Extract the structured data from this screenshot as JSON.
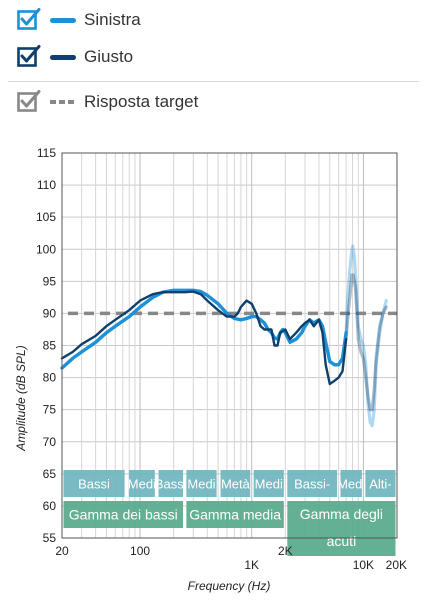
{
  "legend": {
    "items": [
      {
        "label": "Sinistra",
        "color": "#1e90d8",
        "checkbox_color": "#1e90d8",
        "style": "solid"
      },
      {
        "label": "Giusto",
        "color": "#0f3f6b",
        "checkbox_color": "#0f3f6b",
        "style": "solid"
      },
      {
        "label": "Risposta target",
        "color": "#888888",
        "checkbox_color": "#888888",
        "style": "dashed"
      }
    ]
  },
  "chart_data": {
    "type": "line",
    "xlabel": "Frequency (Hz)",
    "ylabel": "Amplitude (dB SPL)",
    "xscale": "log",
    "xlim": [
      20,
      20000
    ],
    "ylim": [
      55,
      115
    ],
    "yticks": [
      55,
      60,
      65,
      70,
      75,
      80,
      85,
      90,
      95,
      100,
      105,
      110,
      115
    ],
    "xtick_labels": [
      {
        "x": 20,
        "label": "20"
      },
      {
        "x": 100,
        "label": "100"
      },
      {
        "x": 1000,
        "label": "1K"
      },
      {
        "x": 2000,
        "label": "2K"
      },
      {
        "x": 10000,
        "label": "10K"
      },
      {
        "x": 20000,
        "label": "20K"
      }
    ],
    "grid": true,
    "target": {
      "name": "Risposta target",
      "value": 90,
      "color": "#888888"
    },
    "series": [
      {
        "name": "Sinistra",
        "color": "#1e90d8",
        "points": [
          [
            20,
            81.5
          ],
          [
            25,
            83
          ],
          [
            30,
            84
          ],
          [
            40,
            85.5
          ],
          [
            50,
            87
          ],
          [
            60,
            88
          ],
          [
            80,
            89.5
          ],
          [
            100,
            91
          ],
          [
            130,
            92.5
          ],
          [
            160,
            93.3
          ],
          [
            200,
            93.6
          ],
          [
            250,
            93.6
          ],
          [
            300,
            93.6
          ],
          [
            350,
            93.4
          ],
          [
            400,
            92.8
          ],
          [
            500,
            91.5
          ],
          [
            600,
            90
          ],
          [
            700,
            89.2
          ],
          [
            800,
            89
          ],
          [
            900,
            89.2
          ],
          [
            1000,
            89.5
          ],
          [
            1100,
            89.5
          ],
          [
            1200,
            89
          ],
          [
            1300,
            88.5
          ],
          [
            1400,
            87.5
          ],
          [
            1500,
            87
          ],
          [
            1600,
            86.2
          ],
          [
            1700,
            86
          ],
          [
            1800,
            87
          ],
          [
            1900,
            87.5
          ],
          [
            2000,
            87
          ],
          [
            2200,
            85.5
          ],
          [
            2500,
            86
          ],
          [
            2800,
            87
          ],
          [
            3000,
            88
          ],
          [
            3300,
            89
          ],
          [
            3600,
            88.5
          ],
          [
            4000,
            89
          ],
          [
            4300,
            88
          ],
          [
            4600,
            85.5
          ],
          [
            5000,
            82.5
          ],
          [
            5500,
            82
          ],
          [
            6000,
            82
          ],
          [
            6500,
            83
          ],
          [
            7000,
            87
          ]
        ],
        "faded_points": [
          [
            7000,
            87
          ],
          [
            7200,
            92
          ],
          [
            7500,
            96
          ],
          [
            7800,
            99
          ],
          [
            8000,
            100.5
          ],
          [
            8300,
            99
          ],
          [
            8700,
            93
          ],
          [
            9000,
            88
          ],
          [
            9500,
            86
          ],
          [
            10000,
            85
          ],
          [
            10500,
            82
          ],
          [
            11000,
            76
          ],
          [
            11500,
            73
          ],
          [
            12000,
            72.5
          ],
          [
            12500,
            75
          ],
          [
            13000,
            82
          ],
          [
            14000,
            87
          ],
          [
            15000,
            90
          ],
          [
            16000,
            92
          ]
        ]
      },
      {
        "name": "Giusto",
        "color": "#0f3f6b",
        "points": [
          [
            20,
            83
          ],
          [
            25,
            84
          ],
          [
            30,
            85.2
          ],
          [
            40,
            86.5
          ],
          [
            50,
            88
          ],
          [
            60,
            89
          ],
          [
            80,
            90.5
          ],
          [
            100,
            92
          ],
          [
            130,
            93
          ],
          [
            160,
            93.3
          ],
          [
            200,
            93.3
          ],
          [
            250,
            93.3
          ],
          [
            300,
            93.4
          ],
          [
            350,
            93
          ],
          [
            400,
            92
          ],
          [
            500,
            90.5
          ],
          [
            600,
            89.5
          ],
          [
            700,
            89.5
          ],
          [
            750,
            90
          ],
          [
            800,
            91
          ],
          [
            900,
            92
          ],
          [
            1000,
            91.5
          ],
          [
            1100,
            90
          ],
          [
            1200,
            88
          ],
          [
            1300,
            87.5
          ],
          [
            1400,
            87.5
          ],
          [
            1500,
            87.5
          ],
          [
            1600,
            85
          ],
          [
            1700,
            85
          ],
          [
            1800,
            87
          ],
          [
            2000,
            87.5
          ],
          [
            2200,
            86
          ],
          [
            2500,
            87
          ],
          [
            2800,
            88
          ],
          [
            3000,
            88.5
          ],
          [
            3300,
            89
          ],
          [
            3600,
            88
          ],
          [
            4000,
            89
          ],
          [
            4300,
            87
          ],
          [
            4600,
            82
          ],
          [
            5000,
            79
          ],
          [
            5500,
            79.5
          ],
          [
            6000,
            80
          ],
          [
            6500,
            81
          ],
          [
            7000,
            86
          ]
        ],
        "faded_points": [
          [
            7000,
            86
          ],
          [
            7300,
            90
          ],
          [
            7600,
            93
          ],
          [
            7900,
            96
          ],
          [
            8100,
            96
          ],
          [
            8500,
            94
          ],
          [
            9000,
            86
          ],
          [
            9500,
            84
          ],
          [
            10000,
            83
          ],
          [
            10500,
            80
          ],
          [
            11000,
            77
          ],
          [
            11500,
            75
          ],
          [
            12000,
            75
          ],
          [
            12500,
            78
          ],
          [
            13000,
            83
          ],
          [
            14000,
            88
          ],
          [
            15000,
            90
          ],
          [
            16000,
            91
          ]
        ]
      }
    ],
    "bands": [
      {
        "row": 1,
        "label": "Bassi",
        "from": 20,
        "to": 75,
        "color": "#6fb4bd"
      },
      {
        "row": 1,
        "label": "Medi",
        "from": 77,
        "to": 140,
        "color": "#6fb4bd"
      },
      {
        "row": 1,
        "label": "Bassi",
        "from": 142,
        "to": 250,
        "color": "#6fb4bd"
      },
      {
        "row": 1,
        "label": "Medi",
        "from": 252,
        "to": 500,
        "color": "#6fb4bd"
      },
      {
        "row": 1,
        "label": "Metà",
        "from": 510,
        "to": 1000,
        "color": "#6fb4bd"
      },
      {
        "row": 1,
        "label": "Medi",
        "from": 1010,
        "to": 2000,
        "color": "#6fb4bd"
      },
      {
        "row": 1,
        "label": "Bassi-",
        "from": 2020,
        "to": 6000,
        "color": "#6fb4bd"
      },
      {
        "row": 1,
        "label": "Medi",
        "from": 6050,
        "to": 10000,
        "color": "#6fb4bd"
      },
      {
        "row": 1,
        "label": "Alti-",
        "from": 10100,
        "to": 20000,
        "color": "#6fb4bd"
      },
      {
        "row": 2,
        "label": "Gamma dei bassi",
        "from": 20,
        "to": 250,
        "color": "#57a98b"
      },
      {
        "row": 2,
        "label": "Gamma media",
        "from": 252,
        "to": 2000,
        "color": "#57a98b"
      },
      {
        "row": 2,
        "label": "Gamma degli acuti",
        "from": 2020,
        "to": 20000,
        "color": "#57a98b"
      }
    ]
  }
}
